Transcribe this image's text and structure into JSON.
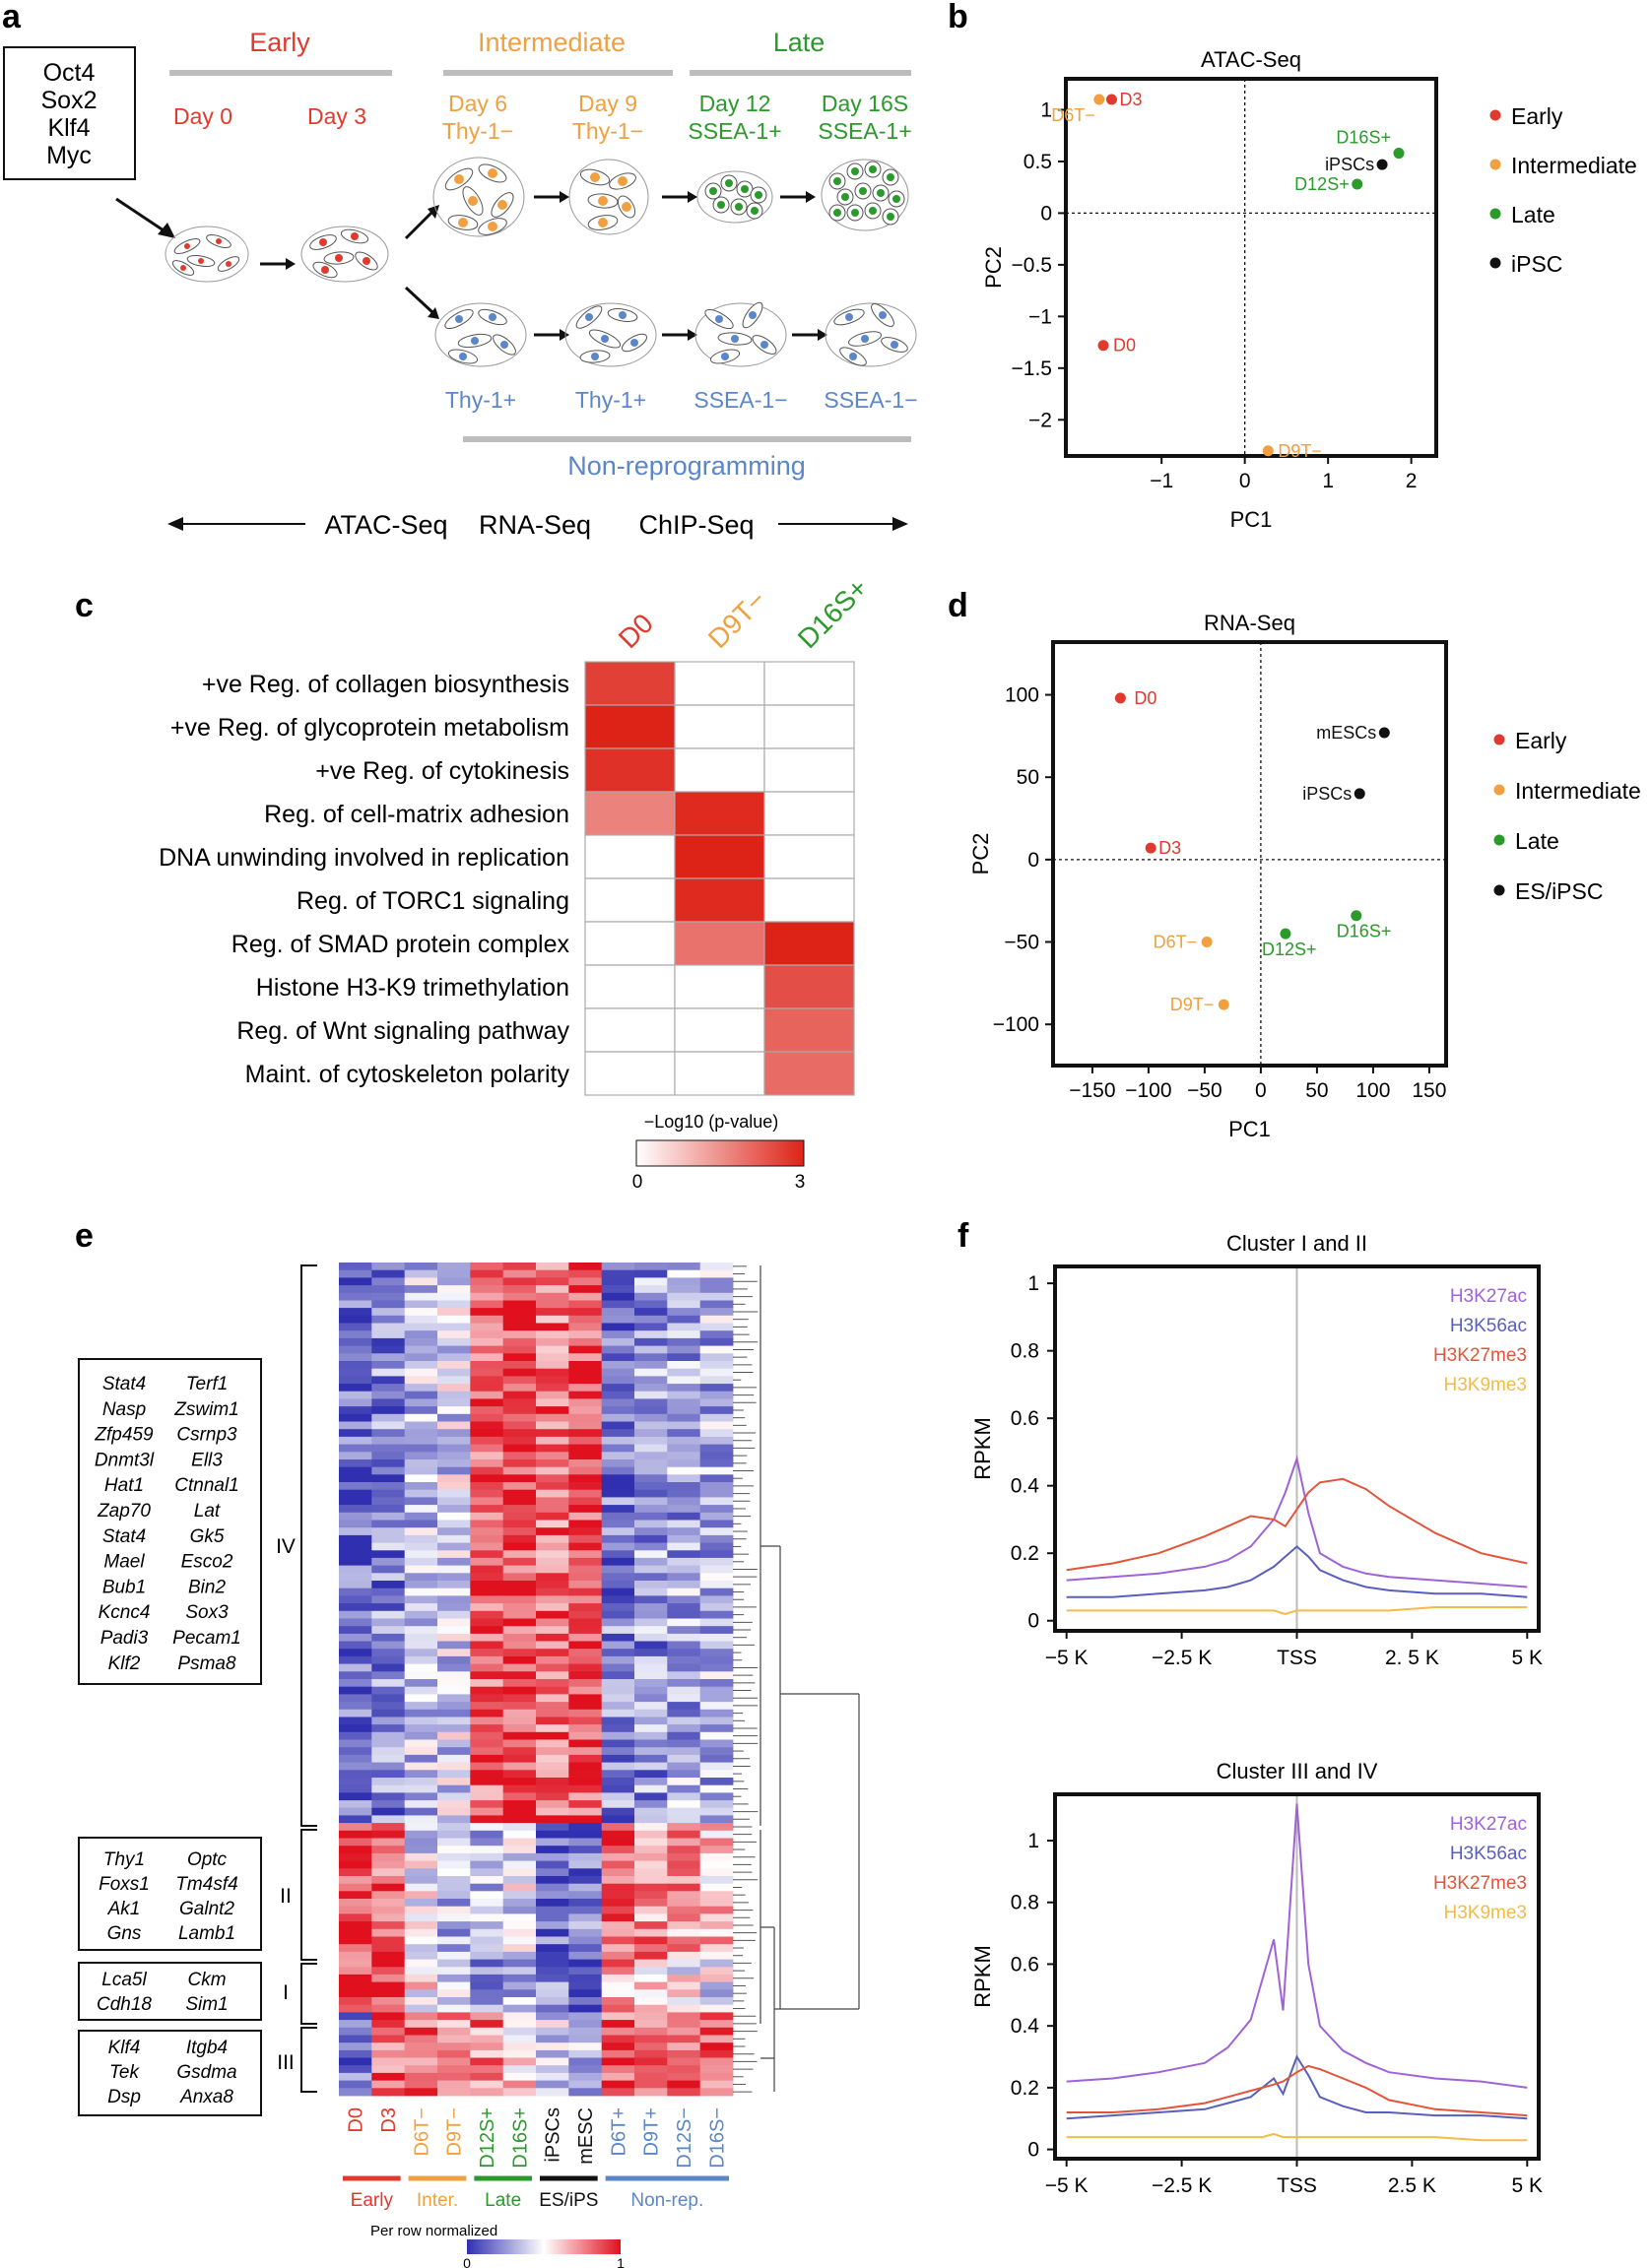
{
  "colors": {
    "early": "#e03a2f",
    "intermediate": "#f0a040",
    "late": "#2a9a2a",
    "black": "#111111",
    "nonrep": "#5b86c8",
    "grey": "#bdbdbd",
    "h3k27ac": "#a063d6",
    "h3k56ac": "#5a5fbe",
    "h3k27me3": "#e2553a",
    "h3k9me3": "#f2bb4c"
  },
  "panels": {
    "a": "a",
    "b": "b",
    "c": "c",
    "d": "d",
    "e": "e",
    "f": "f"
  },
  "panel_a": {
    "factors": [
      "Oct4",
      "Sox2",
      "Klf4",
      "Myc"
    ],
    "stages": {
      "early": "Early",
      "intermediate": "Intermediate",
      "late": "Late"
    },
    "days": {
      "d0": "Day 0",
      "d3": "Day 3",
      "d6": "Day 6",
      "d6_sub": "Thy-1−",
      "d9": "Day 9",
      "d9_sub": "Thy-1−",
      "d12": "Day 12",
      "d12_sub": "SSEA-1+",
      "d16": "Day 16S",
      "d16_sub": "SSEA-1+"
    },
    "nonrep_labels": [
      "Thy-1+",
      "Thy-1+",
      "SSEA-1−",
      "SSEA-1−"
    ],
    "nonrep_title": "Non-reprogramming",
    "assays": {
      "atac": "ATAC-Seq",
      "rna": "RNA-Seq",
      "chip": "ChIP-Seq"
    }
  },
  "legend_b": [
    "Early",
    "Intermediate",
    "Late",
    "iPSC"
  ],
  "legend_d": [
    "Early",
    "Intermediate",
    "Late",
    "ES/iPSC"
  ],
  "panel_c": {
    "columns": [
      "D0",
      "D9T−",
      "D16S+"
    ],
    "rows": [
      "+ve Reg. of collagen biosynthesis",
      "+ve Reg. of glycoprotein metabolism",
      "+ve Reg. of cytokinesis",
      "Reg. of cell-matrix adhesion",
      "DNA unwinding involved in replication",
      "Reg. of TORC1 signaling",
      "Reg. of SMAD protein complex",
      "Histone H3-K9 trimethylation",
      "Reg. of Wnt signaling pathway",
      "Maint. of cytoskeleton polarity"
    ],
    "colorbar_title": "−Log10 (p-value)",
    "colorbar_min": "0",
    "colorbar_max": "3"
  },
  "panel_e": {
    "columns": [
      "D0",
      "D3",
      "D6T−",
      "D9T−",
      "D12S+",
      "D16S+",
      "iPSCs",
      "mESC",
      "D6T+",
      "D9T+",
      "D12S−",
      "D16S−"
    ],
    "groups": [
      "Early",
      "Inter.",
      "Late",
      "ES/iPS",
      "Non-rep."
    ],
    "colorbar_title": "Per row normalized",
    "colorbar_min": "0",
    "colorbar_max": "1",
    "clusters": [
      "IV",
      "II",
      "I",
      "III"
    ],
    "genes_iv_left": [
      "Stat4",
      "Nasp",
      "Zfp459",
      "Dnmt3l",
      "Hat1",
      "Zap70",
      "Stat4",
      "Mael",
      "Bub1",
      "Kcnc4",
      "Padi3",
      "Klf2"
    ],
    "genes_iv_right": [
      "Terf1",
      "Zswim1",
      "Csrnp3",
      "Ell3",
      "Ctnnal1",
      "Lat",
      "Gk5",
      "Esco2",
      "Bin2",
      "Sox3",
      "Pecam1",
      "Psma8"
    ],
    "genes_ii_left": [
      "Thy1",
      "Foxs1",
      "Ak1",
      "Gns"
    ],
    "genes_ii_right": [
      "Optc",
      "Tm4sf4",
      "Galnt2",
      "Lamb1"
    ],
    "genes_i_left": [
      "Lca5l",
      "Cdh18"
    ],
    "genes_i_right": [
      "Ckm",
      "Sim1"
    ],
    "genes_iii_left": [
      "Klf4",
      "Tek",
      "Dsp"
    ],
    "genes_iii_right": [
      "Itgb4",
      "Gsdma",
      "Anxa8"
    ]
  },
  "chart_data": [
    {
      "id": "b",
      "type": "scatter",
      "title": "ATAC-Seq",
      "xlabel": "PC1",
      "ylabel": "PC2",
      "xlim": [
        -2.15,
        2.3
      ],
      "ylim": [
        -2.35,
        1.3
      ],
      "xticks": [
        -1,
        0,
        1,
        2
      ],
      "yticks": [
        1,
        0.5,
        0,
        -0.5,
        -1,
        -1.5,
        -2
      ],
      "xtick_labels": [
        "−1",
        "0",
        "1",
        "2"
      ],
      "ytick_labels": [
        "1",
        "0.5",
        "0",
        "−0.5",
        "−1",
        "−1.5",
        "−2"
      ],
      "points": [
        {
          "label": "D3",
          "x": -1.6,
          "y": 1.1,
          "group": "early"
        },
        {
          "label": "D6T−",
          "x": -1.75,
          "y": 1.1,
          "group": "intermediate"
        },
        {
          "label": "D16S+",
          "x": 1.85,
          "y": 0.58,
          "group": "late"
        },
        {
          "label": "iPSCs",
          "x": 1.65,
          "y": 0.47,
          "group": "black"
        },
        {
          "label": "D12S+",
          "x": 1.35,
          "y": 0.28,
          "group": "late"
        },
        {
          "label": "D0",
          "x": -1.7,
          "y": -1.28,
          "group": "early"
        },
        {
          "label": "D9T−",
          "x": 0.28,
          "y": -2.3,
          "group": "intermediate"
        }
      ]
    },
    {
      "id": "d",
      "type": "scatter",
      "title": "RNA-Seq",
      "xlabel": "PC1",
      "ylabel": "PC2",
      "xlim": [
        -185,
        165
      ],
      "ylim": [
        -125,
        132
      ],
      "xticks": [
        -150,
        -100,
        -50,
        0,
        50,
        100,
        150
      ],
      "yticks": [
        100,
        50,
        0,
        -50,
        -100
      ],
      "xtick_labels": [
        "−150",
        "−100",
        "−50",
        "0",
        "50",
        "100",
        "150"
      ],
      "ytick_labels": [
        "100",
        "50",
        "0",
        "−50",
        "−100"
      ],
      "points": [
        {
          "label": "D0",
          "x": -125,
          "y": 98,
          "group": "early"
        },
        {
          "label": "mESCs",
          "x": 110,
          "y": 77,
          "group": "black"
        },
        {
          "label": "iPSCs",
          "x": 88,
          "y": 40,
          "group": "black"
        },
        {
          "label": "D3",
          "x": -98,
          "y": 7,
          "group": "early"
        },
        {
          "label": "D6T−",
          "x": -48,
          "y": -50,
          "group": "intermediate"
        },
        {
          "label": "D12S+",
          "x": 22,
          "y": -45,
          "group": "late"
        },
        {
          "label": "D16S+",
          "x": 85,
          "y": -34,
          "group": "late"
        },
        {
          "label": "D9T−",
          "x": -33,
          "y": -88,
          "group": "intermediate"
        }
      ]
    },
    {
      "id": "c",
      "type": "heatmap",
      "title": "",
      "value_label": "−Log10 (p-value)",
      "columns": [
        "D0",
        "D9T−",
        "D16S+"
      ],
      "values": [
        [
          2.6,
          0,
          0
        ],
        [
          3.0,
          0,
          0
        ],
        [
          2.8,
          0,
          0
        ],
        [
          1.7,
          2.9,
          0
        ],
        [
          0,
          3.0,
          0
        ],
        [
          0,
          2.9,
          0
        ],
        [
          0,
          1.9,
          3.0
        ],
        [
          0,
          0,
          2.4
        ],
        [
          0,
          0,
          2.1
        ],
        [
          0,
          0,
          2.0
        ]
      ],
      "vmin": 0,
      "vmax": 3
    },
    {
      "id": "f1",
      "type": "line",
      "title": "Cluster I and II",
      "ylabel": "RPKM",
      "x": [
        -5,
        -4,
        -3,
        -2,
        -1.5,
        -1,
        -0.5,
        -0.25,
        0,
        0.25,
        0.5,
        1,
        1.5,
        2,
        3,
        4,
        5
      ],
      "xtick_labels": [
        "−5 K",
        "−2.5 K",
        "TSS",
        "2. 5 K",
        "5 K"
      ],
      "xticks": [
        -5,
        -2.5,
        0,
        2.5,
        5
      ],
      "yticks": [
        0,
        0.2,
        0.4,
        0.6,
        0.8,
        1
      ],
      "ylim": [
        -0.03,
        1.05
      ],
      "series": [
        {
          "name": "H3K27ac",
          "color_key": "h3k27ac",
          "values": [
            0.12,
            0.13,
            0.14,
            0.16,
            0.18,
            0.22,
            0.3,
            0.38,
            0.48,
            0.32,
            0.2,
            0.16,
            0.14,
            0.13,
            0.12,
            0.11,
            0.1
          ]
        },
        {
          "name": "H3K56ac",
          "color_key": "h3k56ac",
          "values": [
            0.07,
            0.07,
            0.08,
            0.09,
            0.1,
            0.12,
            0.16,
            0.19,
            0.22,
            0.19,
            0.15,
            0.12,
            0.1,
            0.09,
            0.08,
            0.08,
            0.07
          ]
        },
        {
          "name": "H3K27me3",
          "color_key": "h3k27me3",
          "values": [
            0.15,
            0.17,
            0.2,
            0.25,
            0.28,
            0.31,
            0.3,
            0.28,
            0.33,
            0.38,
            0.41,
            0.42,
            0.39,
            0.34,
            0.26,
            0.2,
            0.17
          ]
        },
        {
          "name": "H3K9me3",
          "color_key": "h3k9me3",
          "values": [
            0.03,
            0.03,
            0.03,
            0.03,
            0.03,
            0.03,
            0.03,
            0.02,
            0.03,
            0.03,
            0.03,
            0.03,
            0.03,
            0.03,
            0.04,
            0.04,
            0.04
          ]
        }
      ]
    },
    {
      "id": "f2",
      "type": "line",
      "title": "Cluster III and IV",
      "ylabel": "RPKM",
      "x": [
        -5,
        -4,
        -3,
        -2,
        -1.5,
        -1,
        -0.75,
        -0.5,
        -0.3,
        0,
        0.25,
        0.5,
        1,
        1.5,
        2,
        3,
        4,
        5
      ],
      "xtick_labels": [
        "−5 K",
        "−2.5 K",
        "TSS",
        "2.5 K",
        "5 K"
      ],
      "xticks": [
        -5,
        -2.5,
        0,
        2.5,
        5
      ],
      "yticks": [
        0,
        0.2,
        0.4,
        0.6,
        0.8,
        1
      ],
      "ylim": [
        -0.03,
        1.15
      ],
      "series": [
        {
          "name": "H3K27ac",
          "color_key": "h3k27ac",
          "values": [
            0.22,
            0.23,
            0.25,
            0.28,
            0.33,
            0.42,
            0.55,
            0.68,
            0.45,
            1.12,
            0.6,
            0.4,
            0.32,
            0.28,
            0.25,
            0.23,
            0.22,
            0.2
          ]
        },
        {
          "name": "H3K56ac",
          "color_key": "h3k56ac",
          "values": [
            0.1,
            0.11,
            0.12,
            0.13,
            0.15,
            0.17,
            0.2,
            0.23,
            0.18,
            0.3,
            0.24,
            0.17,
            0.14,
            0.12,
            0.12,
            0.11,
            0.11,
            0.1
          ]
        },
        {
          "name": "H3K27me3",
          "color_key": "h3k27me3",
          "values": [
            0.12,
            0.12,
            0.13,
            0.15,
            0.17,
            0.19,
            0.2,
            0.21,
            0.22,
            0.25,
            0.27,
            0.26,
            0.23,
            0.2,
            0.16,
            0.13,
            0.12,
            0.11
          ]
        },
        {
          "name": "H3K9me3",
          "color_key": "h3k9me3",
          "values": [
            0.04,
            0.04,
            0.04,
            0.04,
            0.04,
            0.04,
            0.04,
            0.05,
            0.04,
            0.04,
            0.04,
            0.04,
            0.04,
            0.04,
            0.04,
            0.04,
            0.03,
            0.03
          ]
        }
      ]
    }
  ]
}
